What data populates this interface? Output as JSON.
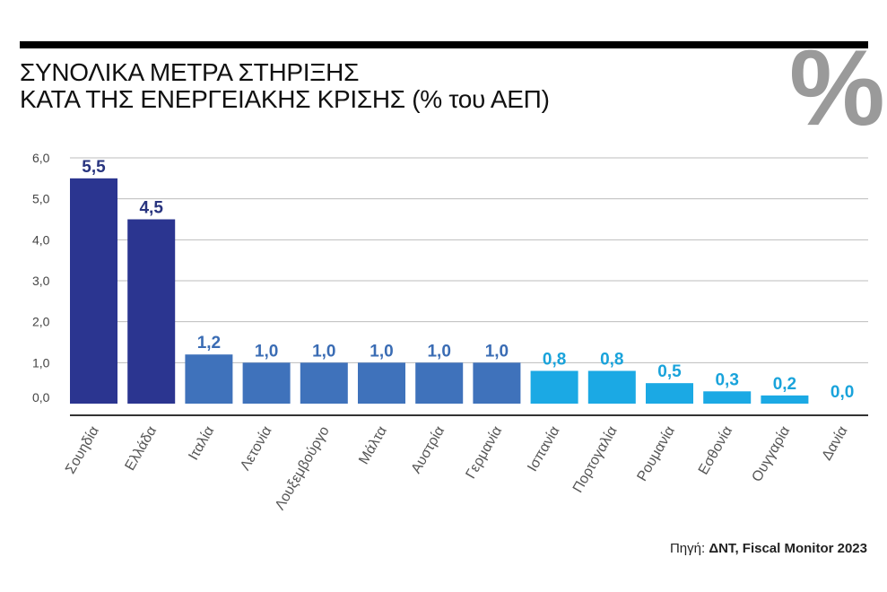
{
  "title": {
    "line1": "ΣΥΝΟΛΙΚΑ ΜΕΤΡΑ ΣΤΗΡΙΞΗΣ",
    "line2": "ΚΑΤΑ ΤΗΣ ΕΝΕΡΓΕΙΑΚΗΣ ΚΡΙΣΗΣ (% του ΑΕΠ)"
  },
  "percent_symbol": "%",
  "source": {
    "prefix": "Πηγή: ",
    "text": "ΔΝΤ, Fiscal Monitor 2023"
  },
  "colors": {
    "dark_blue": "#2b3590",
    "mid_blue": "#3f72bb",
    "light_blue": "#1ba9e4",
    "label_dark": "#28347f",
    "label_mid": "#3a6cb4",
    "label_light": "#19a3db",
    "grid": "#bdbdbd",
    "axis": "#333333",
    "tick_text": "#444444",
    "category_text": "#555555",
    "percent_mark": "#9a9a9a"
  },
  "chart_data": {
    "type": "bar",
    "title": "ΣΥΝΟΛΙΚΑ ΜΕΤΡΑ ΣΤΗΡΙΞΗΣ ΚΑΤΑ ΤΗΣ ΕΝΕΡΓΕΙΑΚΗΣ ΚΡΙΣΗΣ (% του ΑΕΠ)",
    "categories": [
      "Σουηδία",
      "Ελλάδα",
      "Ιταλία",
      "Λετονία",
      "Λουξεμβούργο",
      "Μάλτα",
      "Αυστρία",
      "Γερμανία",
      "Ισπανία",
      "Πορτογαλία",
      "Ρουμανία",
      "Εσθονία",
      "Ουγγαρία",
      "Δανία"
    ],
    "values": [
      5.5,
      4.5,
      1.2,
      1.0,
      1.0,
      1.0,
      1.0,
      1.0,
      0.8,
      0.8,
      0.5,
      0.3,
      0.2,
      0.0
    ],
    "value_labels": [
      "5,5",
      "4,5",
      "1,2",
      "1,0",
      "1,0",
      "1,0",
      "1,0",
      "1,0",
      "0,8",
      "0,8",
      "0,5",
      "0,3",
      "0,2",
      "0,0"
    ],
    "bar_color_group": [
      "dark",
      "dark",
      "mid",
      "mid",
      "mid",
      "mid",
      "mid",
      "mid",
      "light",
      "light",
      "light",
      "light",
      "light",
      "light"
    ],
    "y_ticks": [
      0,
      1,
      2,
      3,
      4,
      5,
      6
    ],
    "y_tick_labels": [
      "0,0",
      "1,0",
      "2,0",
      "3,0",
      "4,0",
      "5,0",
      "6,0"
    ],
    "ylim": [
      0,
      6
    ],
    "xlabel": "",
    "ylabel": "",
    "grid": true
  }
}
